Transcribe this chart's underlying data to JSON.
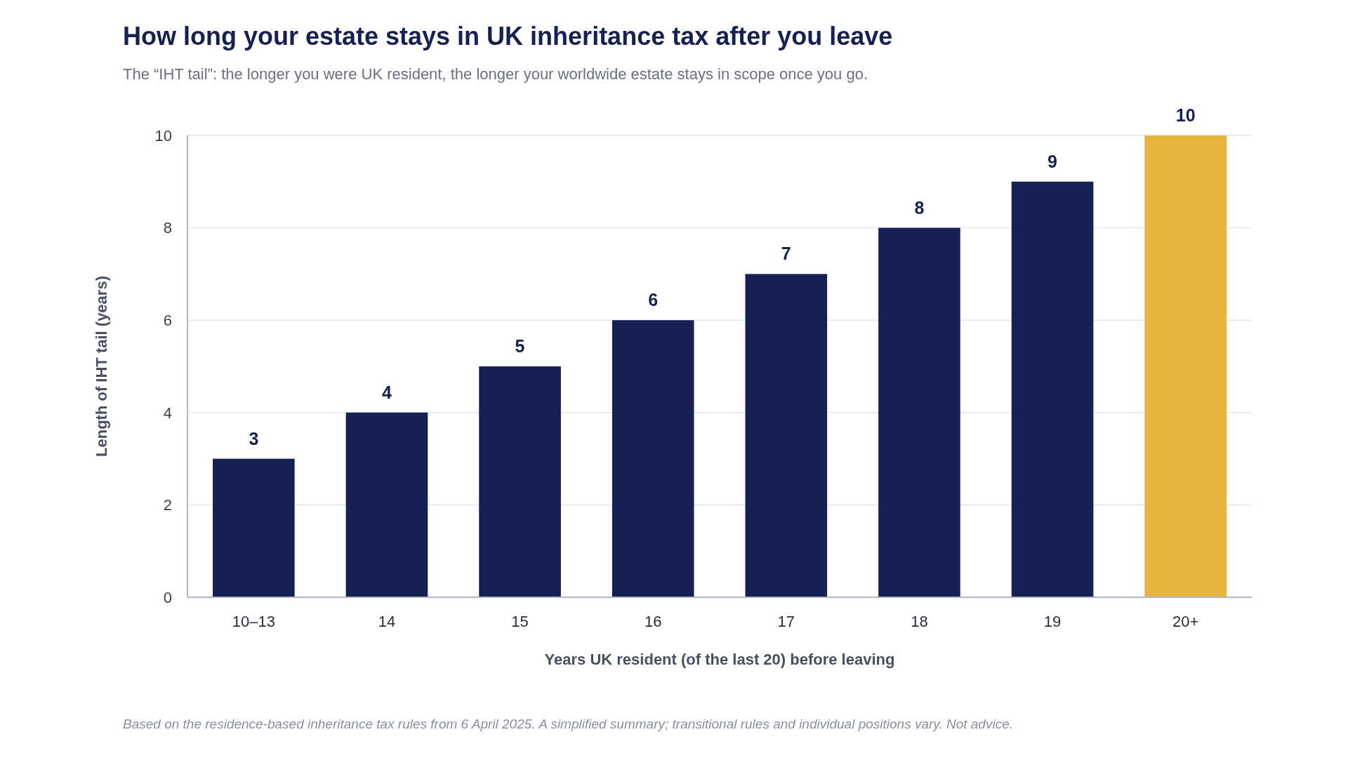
{
  "chart_data": {
    "type": "bar",
    "title": "How long your estate stays in UK inheritance tax after you leave",
    "subtitle": "The “IHT tail”: the longer you were UK resident, the longer your worldwide estate stays in scope once you go.",
    "xlabel": "Years UK resident (of the last 20) before leaving",
    "ylabel": "Length of IHT tail (years)",
    "annotations": [
      "Based on the residence-based inheritance tax rules from 6 April 2025. A simplified summary; transitional rules and individual positions vary. Not advice."
    ],
    "categories": [
      "10–13",
      "14",
      "15",
      "16",
      "17",
      "18",
      "19",
      "20+"
    ],
    "values": [
      3,
      4,
      5,
      6,
      7,
      8,
      9,
      10
    ],
    "colors": [
      "#172052",
      "#172052",
      "#172052",
      "#172052",
      "#172052",
      "#172052",
      "#172052",
      "#e5b53f"
    ],
    "ylim": [
      0,
      10
    ],
    "yticks": [
      0,
      2,
      4,
      6,
      8,
      10
    ],
    "grid": "y",
    "data_labels": true
  }
}
